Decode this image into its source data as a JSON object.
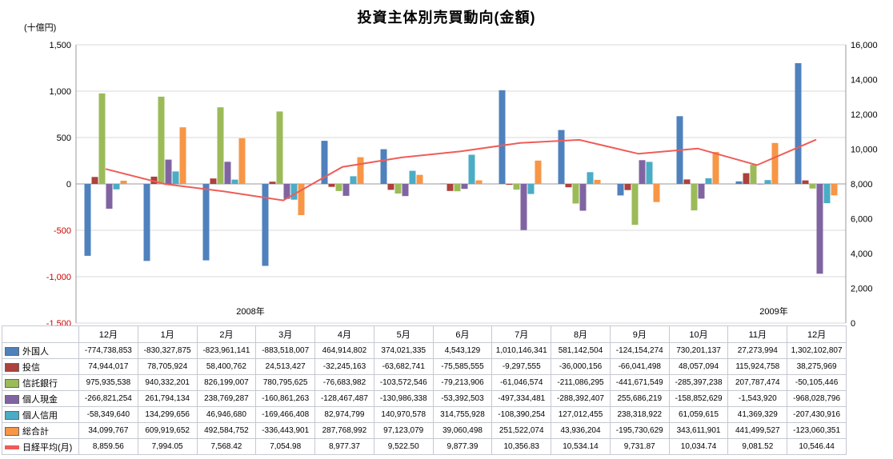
{
  "title": "投資主体別売買動向(金額)",
  "left_axis_unit": "(十億円)",
  "chart_data": {
    "type": "bar-line-combo",
    "categories": [
      "12月",
      "1月",
      "2月",
      "3月",
      "4月",
      "5月",
      "6月",
      "7月",
      "8月",
      "9月",
      "10月",
      "11月",
      "12月"
    ],
    "year_labels": [
      "2008年",
      "2009年"
    ],
    "left_axis": {
      "min": -1500,
      "max": 1500,
      "step": 500,
      "tick_labels": [
        "1,500",
        "1,000",
        "500",
        "0",
        "-500",
        "-1,000",
        "-1,500"
      ],
      "negative_color": "#cc0000"
    },
    "right_axis": {
      "min": 0,
      "max": 16000,
      "step": 2000,
      "tick_labels": [
        "16,000",
        "14,000",
        "12,000",
        "10,000",
        "8,000",
        "6,000",
        "4,000",
        "2,000",
        "0"
      ]
    },
    "series": [
      {
        "name": "外国人",
        "type": "bar",
        "color": "#4f81bd",
        "values": [
          -774738853,
          -830327875,
          -823961141,
          -883518007,
          464914802,
          374021335,
          4543129,
          1010146341,
          581142504,
          -124154274,
          730201137,
          27273994,
          1302102807
        ]
      },
      {
        "name": "投信",
        "type": "bar",
        "color": "#ac413d",
        "values": [
          74944017,
          78705924,
          58400762,
          24513427,
          -32245163,
          -63682741,
          -75585555,
          -9297555,
          -36000156,
          -66041498,
          48057094,
          115924758,
          38275969
        ]
      },
      {
        "name": "信託銀行",
        "type": "bar",
        "color": "#9bbb59",
        "values": [
          975935538,
          940332201,
          826199007,
          780795625,
          -76683982,
          -103572546,
          -79213906,
          -61046574,
          -211086295,
          -441671549,
          -285397238,
          207787474,
          -50105446
        ]
      },
      {
        "name": "個人現金",
        "type": "bar",
        "color": "#8064a2",
        "values": [
          -266821254,
          261794134,
          238769287,
          -160861263,
          -128467487,
          -130986338,
          -53392503,
          -497334481,
          -288392407,
          255686219,
          -158852629,
          -1543920,
          -968028796
        ]
      },
      {
        "name": "個人信用",
        "type": "bar",
        "color": "#4bacc6",
        "values": [
          -58349640,
          134299656,
          46946680,
          -169466408,
          82974799,
          140970578,
          314755928,
          -108390254,
          127012455,
          238318922,
          61059615,
          41369329,
          -207430916
        ]
      },
      {
        "name": "総合計",
        "type": "bar",
        "color": "#f79646",
        "values": [
          34099767,
          609919652,
          492584752,
          -336443901,
          287768992,
          97123079,
          39060498,
          251522074,
          43936204,
          -195730629,
          343611901,
          441499527,
          -123060351
        ]
      },
      {
        "name": "日経平均(月)",
        "type": "line",
        "color": "#ef5c58",
        "decimals": 2,
        "values": [
          8859.56,
          7994.05,
          7568.42,
          7054.98,
          8977.37,
          9522.5,
          9877.39,
          10356.83,
          10534.14,
          9731.87,
          10034.74,
          9081.52,
          10546.44
        ]
      }
    ]
  }
}
